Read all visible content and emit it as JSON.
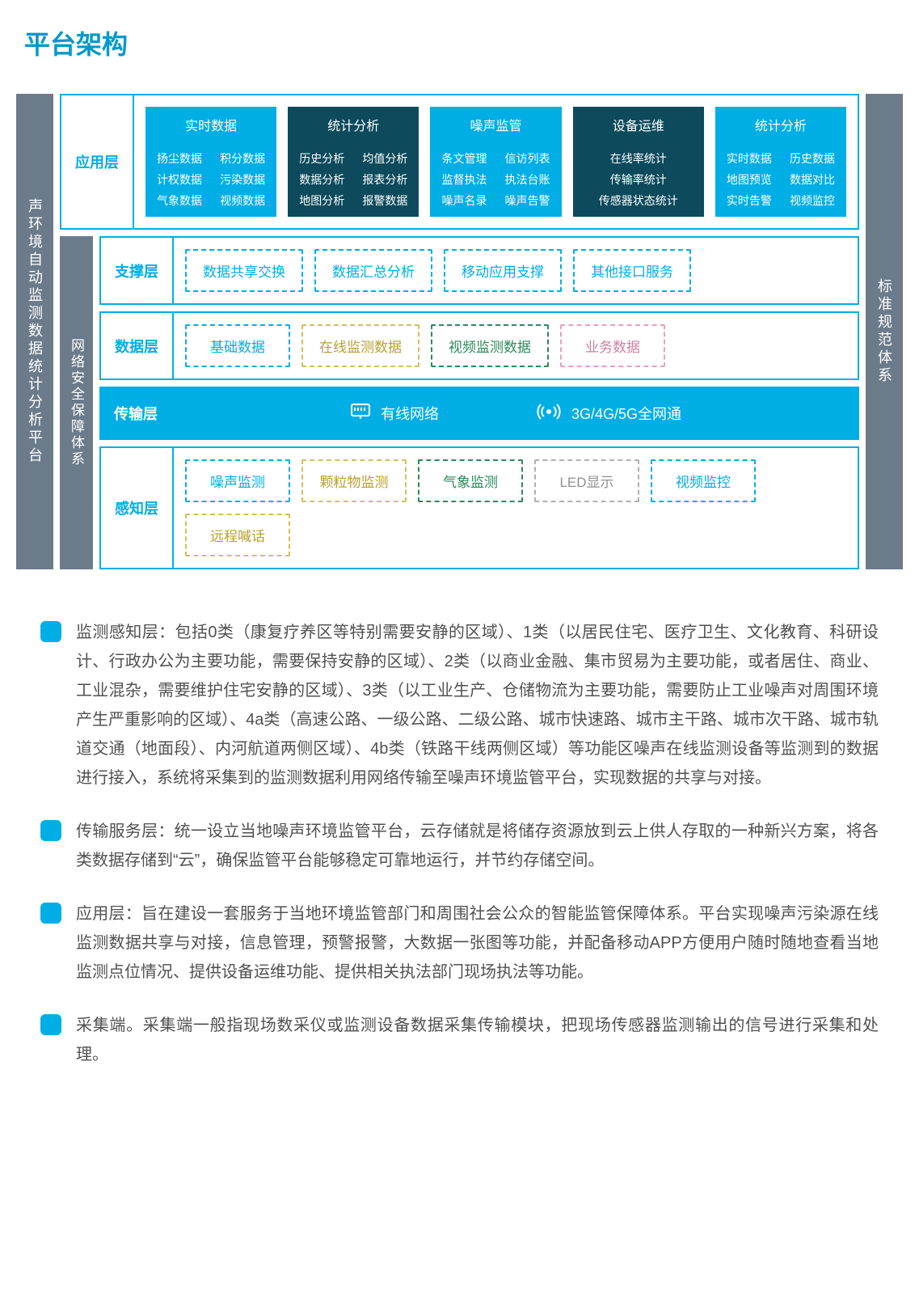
{
  "page_title": "平台架构",
  "colors": {
    "primary": "#00aee6",
    "dark_teal": "#0d4a5c",
    "gray_bar": "#6b7b8a",
    "yellow": "#b8a030",
    "green": "#2a8a5a",
    "pink": "#d080a0",
    "gray_muted": "#909090"
  },
  "left_bar": "声环境自动监测数据统计分析平台",
  "security_bar": "网络安全保障体系",
  "right_bar": "标准规范体系",
  "app_layer": {
    "label": "应用层",
    "cols": [
      {
        "header": "实时数据",
        "tone": "light",
        "items": [
          "扬尘数据",
          "积分数据",
          "计权数据",
          "污染数据",
          "气象数据",
          "视频数据"
        ]
      },
      {
        "header": "统计分析",
        "tone": "dark",
        "items": [
          "历史分析",
          "均值分析",
          "数据分析",
          "报表分析",
          "地图分析",
          "报警数据"
        ]
      },
      {
        "header": "噪声监管",
        "tone": "light",
        "items": [
          "条文管理",
          "信访列表",
          "监督执法",
          "执法台账",
          "噪声名录",
          "噪声告警"
        ]
      },
      {
        "header": "设备运维",
        "tone": "dark",
        "single": true,
        "items": [
          "在线率统计",
          "传输率统计",
          "传感器状态统计"
        ]
      },
      {
        "header": "统计分析",
        "tone": "light",
        "items": [
          "实时数据",
          "历史数据",
          "地图预览",
          "数据对比",
          "实时告警",
          "视频监控"
        ]
      }
    ]
  },
  "support_layer": {
    "label": "支撑层",
    "boxes": [
      {
        "text": "数据共享交换",
        "c": "c-blue"
      },
      {
        "text": "数据汇总分析",
        "c": "c-blue"
      },
      {
        "text": "移动应用支撑",
        "c": "c-blue"
      },
      {
        "text": "其他接口服务",
        "c": "c-blue"
      }
    ]
  },
  "data_layer": {
    "label": "数据层",
    "boxes": [
      {
        "text": "基础数据",
        "c": "c-blue"
      },
      {
        "text": "在线监测数据",
        "c": "c-yellow"
      },
      {
        "text": "视频监测数据",
        "c": "c-green"
      },
      {
        "text": "业务数据",
        "c": "c-pink"
      }
    ]
  },
  "transport_layer": {
    "label": "传输层",
    "items": [
      "有线网络",
      "3G/4G/5G全网通"
    ]
  },
  "perception_layer": {
    "label": "感知层",
    "boxes": [
      {
        "text": "噪声监测",
        "c": "c-blue"
      },
      {
        "text": "颗粒物监测",
        "c": "c-yellow"
      },
      {
        "text": "气象监测",
        "c": "c-green"
      },
      {
        "text": "LED显示",
        "c": "c-gray"
      },
      {
        "text": "视频监控",
        "c": "c-blue"
      },
      {
        "text": "远程喊话",
        "c": "c-yellow"
      }
    ]
  },
  "descriptions": [
    "监测感知层：包括0类（康复疗养区等特别需要安静的区域）、1类（以居民住宅、医疗卫生、文化教育、科研设计、行政办公为主要功能，需要保持安静的区域）、2类（以商业金融、集市贸易为主要功能，或者居住、商业、工业混杂，需要维护住宅安静的区域）、3类（以工业生产、仓储物流为主要功能，需要防止工业噪声对周围环境产生严重影响的区域）、4a类（高速公路、一级公路、二级公路、城市快速路、城市主干路、城市次干路、城市轨道交通（地面段）、内河航道两侧区域）、4b类（铁路干线两侧区域）等功能区噪声在线监测设备等监测到的数据进行接入，系统将采集到的监测数据利用网络传输至噪声环境监管平台，实现数据的共享与对接。",
    "传输服务层：统一设立当地噪声环境监管平台，云存储就是将储存资源放到云上供人存取的一种新兴方案，将各类数据存储到“云”，确保监管平台能够稳定可靠地运行，并节约存储空间。",
    "应用层：旨在建设一套服务于当地环境监管部门和周围社会公众的智能监管保障体系。平台实现噪声污染源在线监测数据共享与对接，信息管理，预警报警，大数据一张图等功能，并配备移动APP方便用户随时随地查看当地监测点位情况、提供设备运维功能、提供相关执法部门现场执法等功能。",
    "采集端。采集端一般指现场数采仪或监测设备数据采集传输模块，把现场传感器监测输出的信号进行采集和处理。"
  ]
}
